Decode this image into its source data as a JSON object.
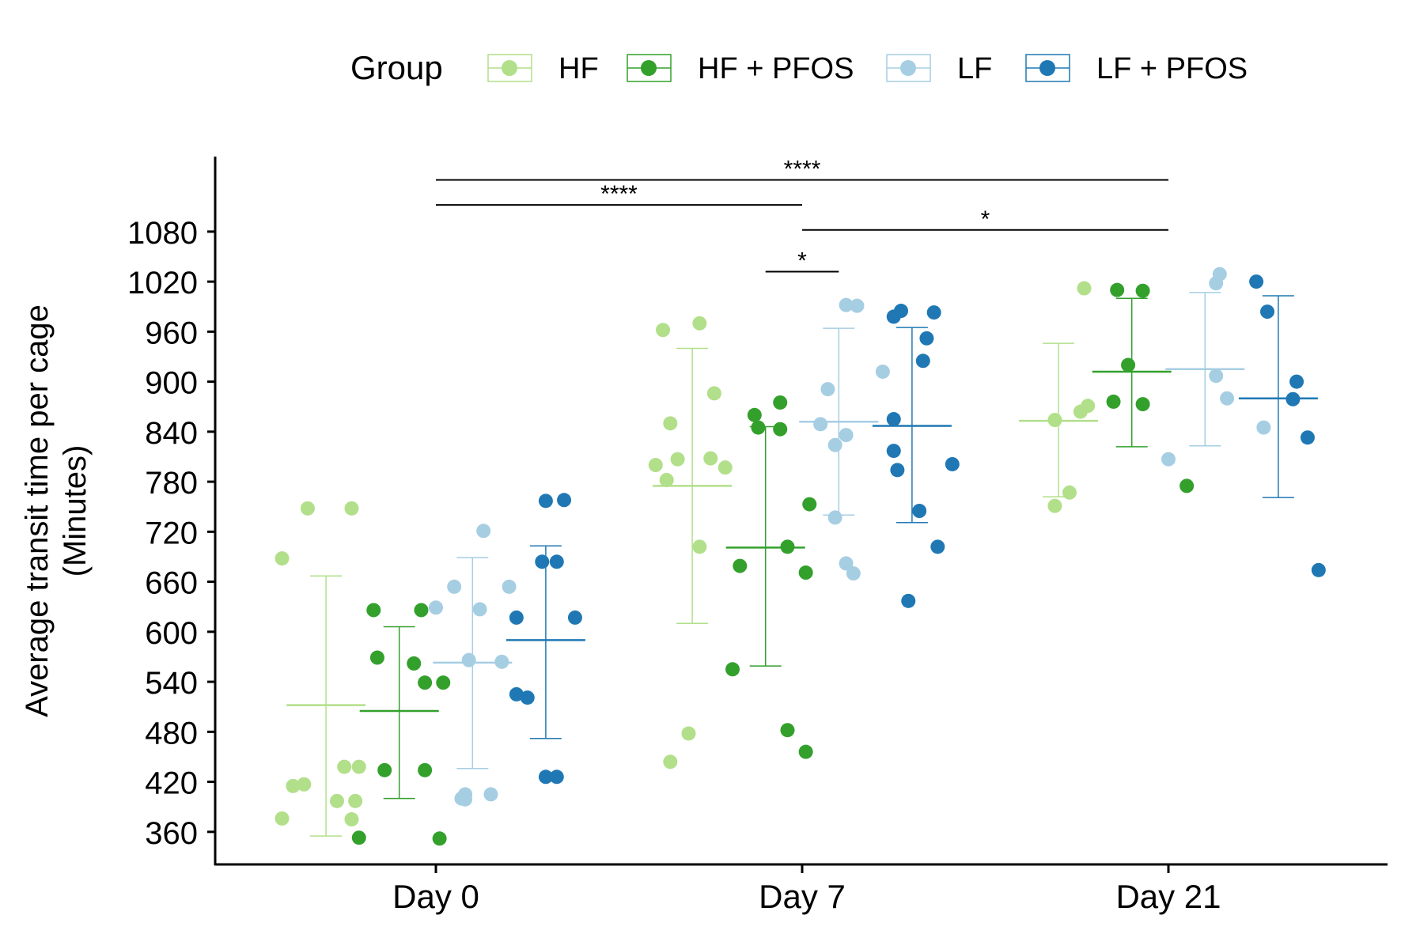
{
  "chart_data": {
    "type": "scatter",
    "title": "",
    "xlabel": "",
    "ylabel": "Average transit time per cage",
    "ylabel_unit": "(Minutes)",
    "categories": [
      "Day 0",
      "Day 7",
      "Day 21"
    ],
    "ylim": [
      320,
      1170
    ],
    "yticks": [
      360,
      420,
      480,
      540,
      600,
      660,
      720,
      780,
      840,
      900,
      960,
      1020,
      1080
    ],
    "grid": false,
    "legend": {
      "title": "Group",
      "position": "top",
      "entries": [
        "HF",
        "HF + PFOS",
        "LF",
        "LF + PFOS"
      ]
    },
    "series": [
      {
        "name": "HF",
        "color": "#b2df8a",
        "summary": [
          {
            "mean": 512,
            "lower": 355,
            "upper": 667
          },
          {
            "mean": 775,
            "lower": 610,
            "upper": 940
          },
          {
            "mean": 853,
            "lower": 762,
            "upper": 946
          }
        ],
        "points": [
          [
            [
              -0.12,
              688
            ],
            [
              -0.05,
              748
            ],
            [
              0.07,
              748
            ],
            [
              -0.09,
              415
            ],
            [
              -0.06,
              417
            ],
            [
              0.05,
              438
            ],
            [
              0.09,
              438
            ],
            [
              0.03,
              397
            ],
            [
              0.08,
              397
            ],
            [
              -0.12,
              376
            ],
            [
              0.07,
              375
            ]
          ],
          [
            [
              -0.08,
              962
            ],
            [
              0.02,
              970
            ],
            [
              0.06,
              886
            ],
            [
              -0.06,
              850
            ],
            [
              -0.1,
              800
            ],
            [
              -0.04,
              807
            ],
            [
              0.05,
              808
            ],
            [
              0.09,
              797
            ],
            [
              -0.07,
              782
            ],
            [
              0.02,
              702
            ],
            [
              -0.01,
              478
            ],
            [
              -0.06,
              444
            ]
          ],
          [
            [
              0.07,
              1012
            ],
            [
              -0.01,
              854
            ],
            [
              0.06,
              864
            ],
            [
              0.08,
              871
            ],
            [
              0.03,
              767
            ],
            [
              -0.01,
              751
            ]
          ]
        ]
      },
      {
        "name": "HF + PFOS",
        "color": "#33a02c",
        "summary": [
          {
            "mean": 505,
            "lower": 400,
            "upper": 606
          },
          {
            "mean": 701,
            "lower": 559,
            "upper": 846
          },
          {
            "mean": 912,
            "lower": 822,
            "upper": 1000
          }
        ],
        "points": [
          [
            [
              -0.07,
              626
            ],
            [
              0.06,
              626
            ],
            [
              -0.06,
              569
            ],
            [
              0.04,
              562
            ],
            [
              0.07,
              539
            ],
            [
              0.12,
              539
            ],
            [
              -0.04,
              434
            ],
            [
              0.07,
              434
            ],
            [
              -0.11,
              353
            ],
            [
              0.11,
              352
            ]
          ],
          [
            [
              -0.03,
              860
            ],
            [
              0.04,
              875
            ],
            [
              -0.02,
              845
            ],
            [
              0.04,
              843
            ],
            [
              0.12,
              753
            ],
            [
              0.06,
              702
            ],
            [
              -0.07,
              679
            ],
            [
              0.11,
              671
            ],
            [
              -0.09,
              555
            ],
            [
              0.06,
              482
            ],
            [
              0.11,
              456
            ]
          ],
          [
            [
              -0.04,
              1010
            ],
            [
              0.03,
              1009
            ],
            [
              -0.01,
              920
            ],
            [
              -0.05,
              876
            ],
            [
              0.03,
              873
            ],
            [
              0.15,
              775
            ]
          ]
        ]
      },
      {
        "name": "LF",
        "color": "#a6cee3",
        "summary": [
          {
            "mean": 563,
            "lower": 436,
            "upper": 689
          },
          {
            "mean": 852,
            "lower": 740,
            "upper": 964
          },
          {
            "mean": 915,
            "lower": 823,
            "upper": 1007
          }
        ],
        "points": [
          [
            [
              0.03,
              721
            ],
            [
              -0.05,
              654
            ],
            [
              0.1,
              654
            ],
            [
              -0.1,
              629
            ],
            [
              0.02,
              627
            ],
            [
              -0.01,
              566
            ],
            [
              0.08,
              564
            ],
            [
              -0.02,
              405
            ],
            [
              0.05,
              405
            ],
            [
              -0.03,
              400
            ],
            [
              -0.02,
              399
            ]
          ],
          [
            [
              0.02,
              992
            ],
            [
              0.05,
              991
            ],
            [
              -0.03,
              891
            ],
            [
              0.12,
              912
            ],
            [
              -0.05,
              849
            ],
            [
              0.02,
              836
            ],
            [
              -0.01,
              824
            ],
            [
              -0.01,
              737
            ],
            [
              0.02,
              682
            ],
            [
              0.04,
              670
            ]
          ],
          [
            [
              0.04,
              1029
            ],
            [
              0.03,
              1018
            ],
            [
              0.03,
              907
            ],
            [
              0.06,
              880
            ],
            [
              0.16,
              845
            ],
            [
              -0.1,
              807
            ]
          ]
        ]
      },
      {
        "name": "LF + PFOS",
        "color": "#1f78b4",
        "summary": [
          {
            "mean": 590,
            "lower": 472,
            "upper": 703
          },
          {
            "mean": 847,
            "lower": 731,
            "upper": 965
          },
          {
            "mean": 880,
            "lower": 761,
            "upper": 1003
          }
        ],
        "points": [
          [
            [
              0.0,
              757
            ],
            [
              0.05,
              758
            ],
            [
              -0.01,
              684
            ],
            [
              0.03,
              684
            ],
            [
              -0.08,
              617
            ],
            [
              0.08,
              617
            ],
            [
              -0.08,
              525
            ],
            [
              -0.05,
              521
            ],
            [
              0.0,
              426
            ],
            [
              0.03,
              426
            ]
          ],
          [
            [
              -0.05,
              978
            ],
            [
              -0.03,
              985
            ],
            [
              0.06,
              983
            ],
            [
              0.04,
              952
            ],
            [
              0.03,
              925
            ],
            [
              -0.05,
              855
            ],
            [
              -0.05,
              817
            ],
            [
              -0.04,
              794
            ],
            [
              0.11,
              801
            ],
            [
              0.02,
              745
            ],
            [
              0.07,
              702
            ],
            [
              -0.01,
              637
            ]
          ],
          [
            [
              -0.06,
              1020
            ],
            [
              -0.03,
              984
            ],
            [
              0.05,
              900
            ],
            [
              0.04,
              879
            ],
            [
              0.08,
              833
            ],
            [
              0.11,
              674
            ]
          ]
        ]
      }
    ],
    "annotations": [
      {
        "label": "****",
        "from": "Day 0",
        "to": "Day 21",
        "y": 1142
      },
      {
        "label": "****",
        "from": "Day 0",
        "to": "Day 7",
        "y": 1112
      },
      {
        "label": "*",
        "from": "Day 7",
        "to": "Day 21",
        "y": 1082
      },
      {
        "label": "*",
        "from_series": "HF + PFOS",
        "to_series": "LF",
        "category": "Day 7",
        "y": 1032
      }
    ]
  }
}
